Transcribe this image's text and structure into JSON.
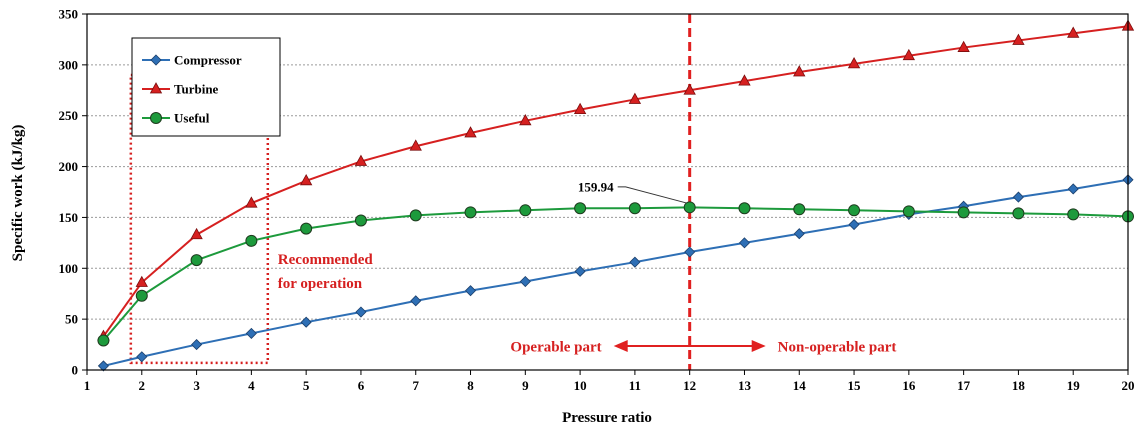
{
  "chart_data": {
    "type": "line",
    "title": "",
    "xlabel": "Pressure ratio",
    "ylabel": "Specific work (kJ/kg)",
    "xlim": [
      1,
      20
    ],
    "ylim": [
      0,
      350
    ],
    "xticks": [
      1,
      2,
      3,
      4,
      5,
      6,
      7,
      8,
      9,
      10,
      11,
      12,
      13,
      14,
      15,
      16,
      17,
      18,
      19,
      20
    ],
    "yticks": [
      0,
      50,
      100,
      150,
      200,
      250,
      300,
      350
    ],
    "grid": "horizontal dotted",
    "legend_position": "top-left",
    "x": [
      1.3,
      2,
      3,
      4,
      5,
      6,
      7,
      8,
      9,
      10,
      11,
      12,
      13,
      14,
      15,
      16,
      17,
      18,
      19,
      20
    ],
    "series": [
      {
        "name": "Compressor",
        "color": "#2e6fb5",
        "marker": "diamond",
        "values": [
          4,
          13,
          25,
          36,
          47,
          57,
          68,
          78,
          87,
          97,
          106,
          116,
          125,
          134,
          143,
          153,
          161,
          170,
          178,
          187
        ]
      },
      {
        "name": "Turbine",
        "color": "#d62020",
        "marker": "triangle",
        "values": [
          33,
          86,
          133,
          164,
          186,
          205,
          220,
          233,
          245,
          256,
          266,
          275,
          284,
          293,
          301,
          309,
          317,
          324,
          331,
          338
        ]
      },
      {
        "name": "Useful",
        "color": "#1d9a3c",
        "marker": "circle",
        "values": [
          29,
          73,
          108,
          127,
          139,
          147,
          152,
          155,
          157,
          159,
          159,
          159.94,
          159,
          158,
          157,
          156,
          155,
          154,
          153,
          151
        ]
      }
    ],
    "annotations": {
      "peak_label": "159.94",
      "peak_x": 12,
      "peak_y": 159.94,
      "divider_x": 12,
      "recommended_box": {
        "x_range": [
          1.8,
          4.3
        ],
        "y_range": [
          7,
          290
        ],
        "label_line1": "Recommended",
        "label_line2": "for operation"
      },
      "operable_label": "Operable part",
      "non_operable_label": "Non-operable part"
    }
  }
}
